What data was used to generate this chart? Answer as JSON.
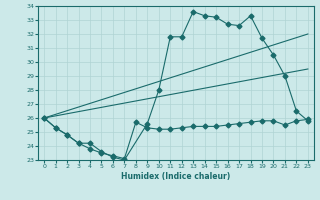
{
  "xlabel": "Humidex (Indice chaleur)",
  "xlim": [
    -0.5,
    23.5
  ],
  "ylim": [
    23,
    34
  ],
  "xticks": [
    0,
    1,
    2,
    3,
    4,
    5,
    6,
    7,
    8,
    9,
    10,
    11,
    12,
    13,
    14,
    15,
    16,
    17,
    18,
    19,
    20,
    21,
    22,
    23
  ],
  "yticks": [
    23,
    24,
    25,
    26,
    27,
    28,
    29,
    30,
    31,
    32,
    33,
    34
  ],
  "bg_color": "#cce9e9",
  "line_color": "#1a6b6b",
  "line1_x": [
    0,
    1,
    2,
    3,
    4,
    5,
    6,
    7,
    9,
    10,
    11,
    12,
    13,
    14,
    15,
    16,
    17,
    18,
    19,
    20,
    21,
    22,
    23
  ],
  "line1_y": [
    26,
    25.3,
    24.8,
    24.2,
    24.2,
    23.6,
    23.2,
    23.0,
    25.6,
    28.0,
    31.8,
    31.8,
    33.6,
    33.3,
    33.2,
    32.7,
    32.6,
    33.3,
    31.7,
    30.5,
    29.0,
    26.5,
    25.8
  ],
  "line2_x": [
    0,
    1,
    2,
    3,
    4,
    5,
    6,
    7,
    8,
    9,
    10,
    11,
    12,
    13,
    14,
    15,
    16,
    17,
    18,
    19,
    20,
    21,
    22,
    23
  ],
  "line2_y": [
    26,
    25.3,
    24.8,
    24.2,
    23.8,
    23.5,
    23.3,
    23.1,
    25.7,
    25.3,
    25.2,
    25.2,
    25.3,
    25.4,
    25.4,
    25.4,
    25.5,
    25.6,
    25.7,
    25.8,
    25.8,
    25.5,
    25.8,
    25.9
  ],
  "line3_x": [
    0,
    23
  ],
  "line3_y": [
    26.0,
    32.0
  ],
  "line4_x": [
    0,
    23
  ],
  "line4_y": [
    26.0,
    29.5
  ]
}
